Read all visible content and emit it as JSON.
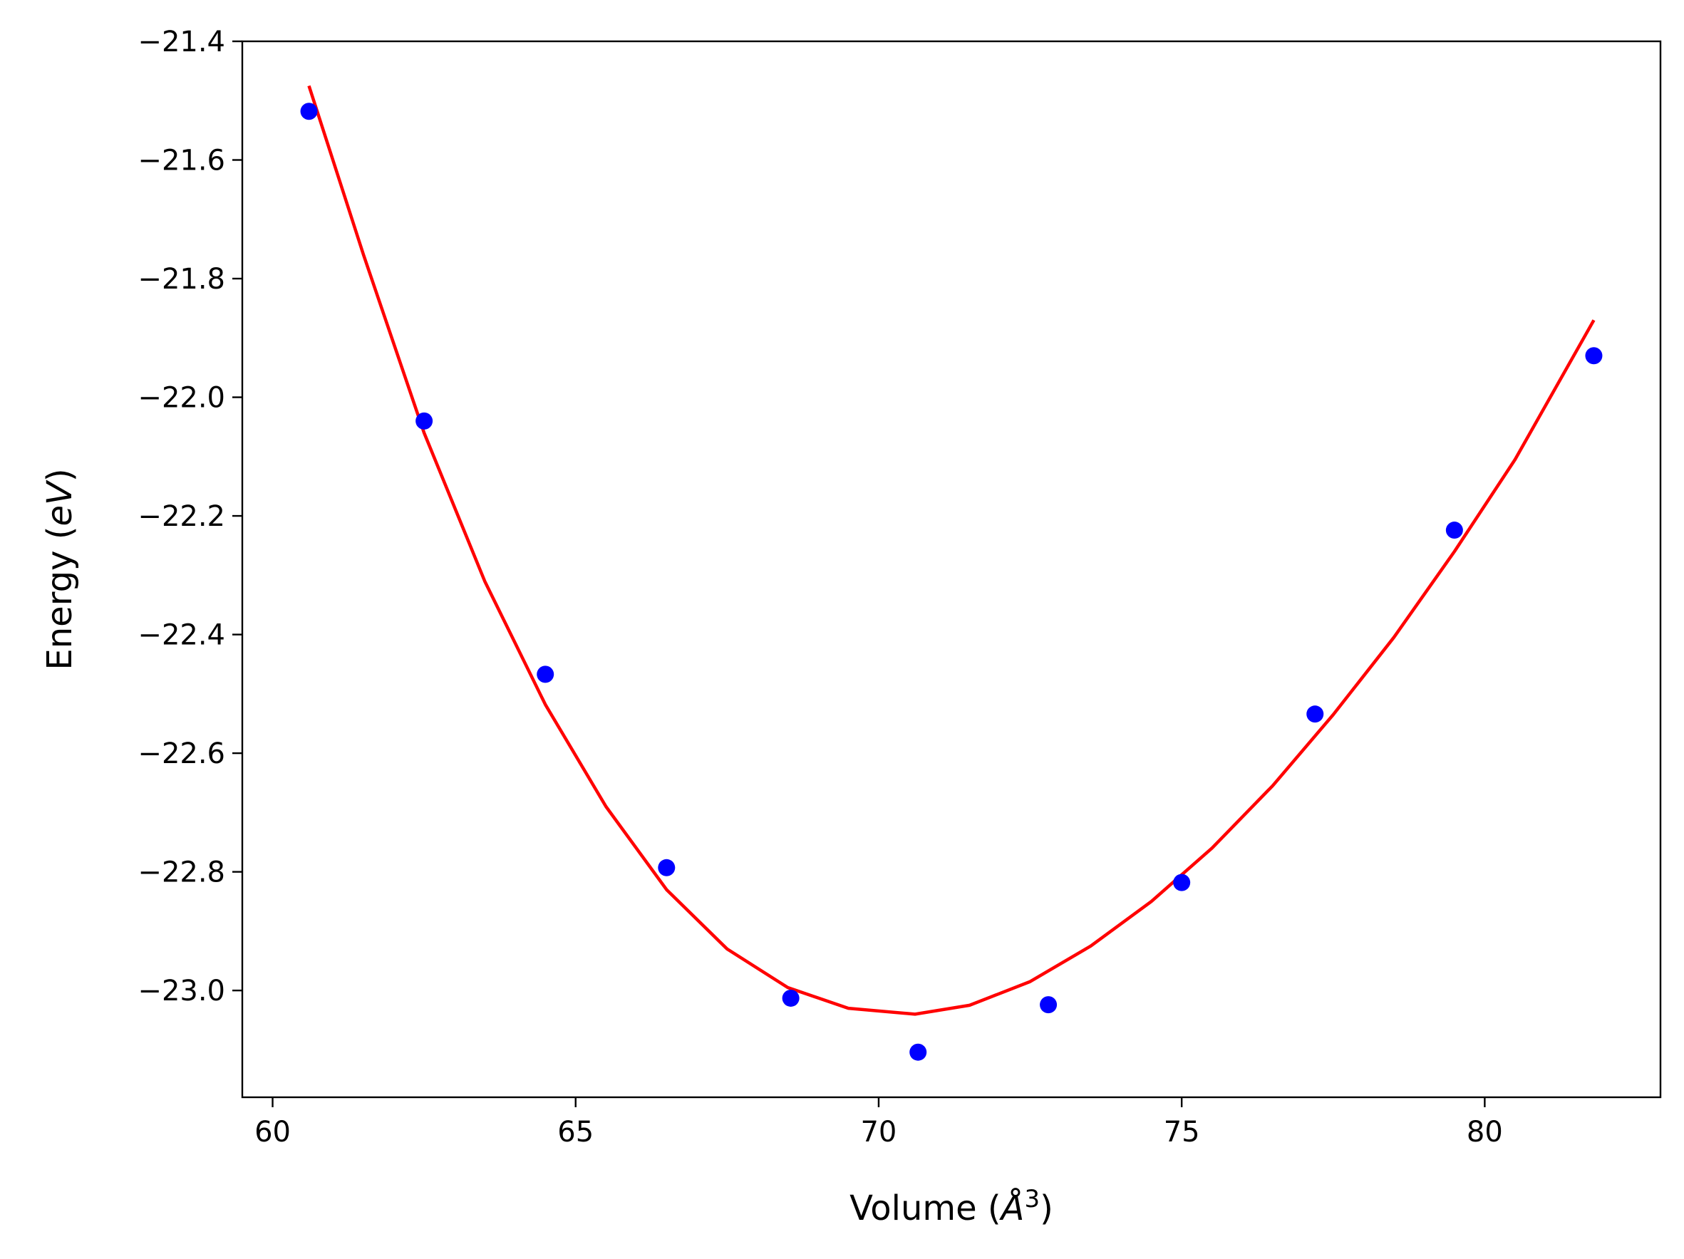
{
  "chart_data": {
    "type": "scatter",
    "title": "",
    "xlabel": "Volume (Å³)",
    "xlabel_parts": {
      "prefix": "Volume (",
      "unit": "Å",
      "exponent": "3",
      "suffix": ")"
    },
    "ylabel": "Energy (eV)",
    "ylabel_parts": {
      "prefix": "Energy (",
      "unit": "eV",
      "suffix": ")"
    },
    "xlim": [
      59.5,
      82.9
    ],
    "ylim": [
      -23.18,
      -21.4
    ],
    "x_ticks": [
      60,
      65,
      70,
      75,
      80
    ],
    "y_ticks": [
      -21.4,
      -21.6,
      -21.8,
      -22.0,
      -22.2,
      -22.4,
      -22.6,
      -22.8,
      -23.0
    ],
    "x_tick_labels": [
      "60",
      "65",
      "70",
      "75",
      "80"
    ],
    "y_tick_labels": [
      "−21.4",
      "−21.6",
      "−21.8",
      "−22.0",
      "−22.2",
      "−22.4",
      "−22.6",
      "−22.8",
      "−23.0"
    ],
    "grid": false,
    "legend": "none",
    "series": [
      {
        "kind": "scatter",
        "color": "#0000ff",
        "points": [
          {
            "x": 60.6,
            "y": -21.518
          },
          {
            "x": 62.5,
            "y": -22.04
          },
          {
            "x": 64.5,
            "y": -22.467
          },
          {
            "x": 66.5,
            "y": -22.793
          },
          {
            "x": 68.55,
            "y": -23.013
          },
          {
            "x": 70.65,
            "y": -23.104
          },
          {
            "x": 72.8,
            "y": -23.024
          },
          {
            "x": 75.0,
            "y": -22.818
          },
          {
            "x": 77.2,
            "y": -22.534
          },
          {
            "x": 79.5,
            "y": -22.224
          },
          {
            "x": 81.8,
            "y": -21.93
          }
        ]
      },
      {
        "kind": "line",
        "color": "#ff0000",
        "points": [
          {
            "x": 60.6,
            "y": -21.475
          },
          {
            "x": 61.5,
            "y": -21.76
          },
          {
            "x": 62.5,
            "y": -22.06
          },
          {
            "x": 63.5,
            "y": -22.31
          },
          {
            "x": 64.5,
            "y": -22.518
          },
          {
            "x": 65.5,
            "y": -22.69
          },
          {
            "x": 66.5,
            "y": -22.83
          },
          {
            "x": 67.5,
            "y": -22.93
          },
          {
            "x": 68.5,
            "y": -22.995
          },
          {
            "x": 69.5,
            "y": -23.03
          },
          {
            "x": 70.6,
            "y": -23.04
          },
          {
            "x": 71.5,
            "y": -23.025
          },
          {
            "x": 72.5,
            "y": -22.985
          },
          {
            "x": 73.5,
            "y": -22.925
          },
          {
            "x": 74.5,
            "y": -22.85
          },
          {
            "x": 75.5,
            "y": -22.76
          },
          {
            "x": 76.5,
            "y": -22.655
          },
          {
            "x": 77.5,
            "y": -22.535
          },
          {
            "x": 78.5,
            "y": -22.405
          },
          {
            "x": 79.5,
            "y": -22.26
          },
          {
            "x": 80.5,
            "y": -22.105
          },
          {
            "x": 81.8,
            "y": -21.87
          }
        ]
      }
    ]
  }
}
